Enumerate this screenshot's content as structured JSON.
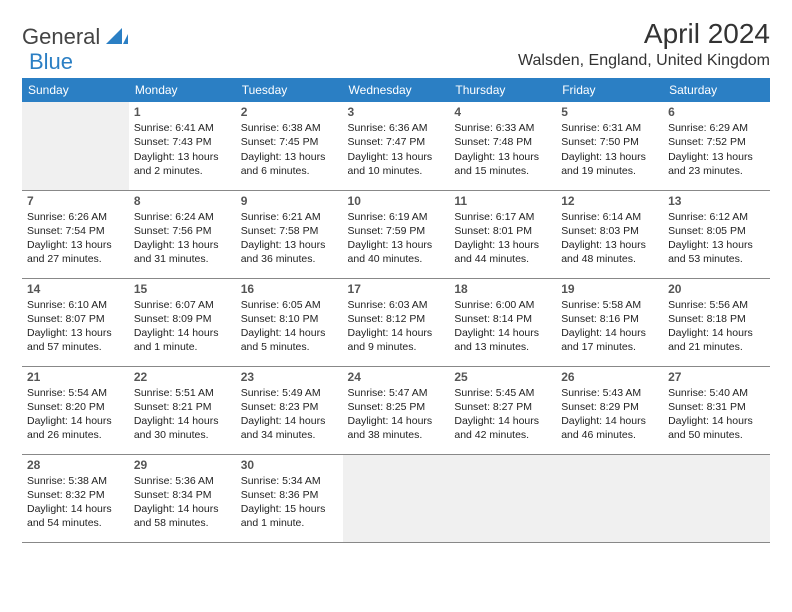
{
  "brand": {
    "part1": "General",
    "part2": "Blue"
  },
  "title": "April 2024",
  "location": "Walsden, England, United Kingdom",
  "colors": {
    "header_bg": "#2b7fc4",
    "header_text": "#ffffff",
    "brand_blue": "#2b7fc4",
    "text": "#222222",
    "empty_bg": "#f0f0f0",
    "border": "#888888"
  },
  "day_headers": [
    "Sunday",
    "Monday",
    "Tuesday",
    "Wednesday",
    "Thursday",
    "Friday",
    "Saturday"
  ],
  "weeks": [
    [
      null,
      {
        "n": "1",
        "sr": "Sunrise: 6:41 AM",
        "ss": "Sunset: 7:43 PM",
        "dl": "Daylight: 13 hours and 2 minutes."
      },
      {
        "n": "2",
        "sr": "Sunrise: 6:38 AM",
        "ss": "Sunset: 7:45 PM",
        "dl": "Daylight: 13 hours and 6 minutes."
      },
      {
        "n": "3",
        "sr": "Sunrise: 6:36 AM",
        "ss": "Sunset: 7:47 PM",
        "dl": "Daylight: 13 hours and 10 minutes."
      },
      {
        "n": "4",
        "sr": "Sunrise: 6:33 AM",
        "ss": "Sunset: 7:48 PM",
        "dl": "Daylight: 13 hours and 15 minutes."
      },
      {
        "n": "5",
        "sr": "Sunrise: 6:31 AM",
        "ss": "Sunset: 7:50 PM",
        "dl": "Daylight: 13 hours and 19 minutes."
      },
      {
        "n": "6",
        "sr": "Sunrise: 6:29 AM",
        "ss": "Sunset: 7:52 PM",
        "dl": "Daylight: 13 hours and 23 minutes."
      }
    ],
    [
      {
        "n": "7",
        "sr": "Sunrise: 6:26 AM",
        "ss": "Sunset: 7:54 PM",
        "dl": "Daylight: 13 hours and 27 minutes."
      },
      {
        "n": "8",
        "sr": "Sunrise: 6:24 AM",
        "ss": "Sunset: 7:56 PM",
        "dl": "Daylight: 13 hours and 31 minutes."
      },
      {
        "n": "9",
        "sr": "Sunrise: 6:21 AM",
        "ss": "Sunset: 7:58 PM",
        "dl": "Daylight: 13 hours and 36 minutes."
      },
      {
        "n": "10",
        "sr": "Sunrise: 6:19 AM",
        "ss": "Sunset: 7:59 PM",
        "dl": "Daylight: 13 hours and 40 minutes."
      },
      {
        "n": "11",
        "sr": "Sunrise: 6:17 AM",
        "ss": "Sunset: 8:01 PM",
        "dl": "Daylight: 13 hours and 44 minutes."
      },
      {
        "n": "12",
        "sr": "Sunrise: 6:14 AM",
        "ss": "Sunset: 8:03 PM",
        "dl": "Daylight: 13 hours and 48 minutes."
      },
      {
        "n": "13",
        "sr": "Sunrise: 6:12 AM",
        "ss": "Sunset: 8:05 PM",
        "dl": "Daylight: 13 hours and 53 minutes."
      }
    ],
    [
      {
        "n": "14",
        "sr": "Sunrise: 6:10 AM",
        "ss": "Sunset: 8:07 PM",
        "dl": "Daylight: 13 hours and 57 minutes."
      },
      {
        "n": "15",
        "sr": "Sunrise: 6:07 AM",
        "ss": "Sunset: 8:09 PM",
        "dl": "Daylight: 14 hours and 1 minute."
      },
      {
        "n": "16",
        "sr": "Sunrise: 6:05 AM",
        "ss": "Sunset: 8:10 PM",
        "dl": "Daylight: 14 hours and 5 minutes."
      },
      {
        "n": "17",
        "sr": "Sunrise: 6:03 AM",
        "ss": "Sunset: 8:12 PM",
        "dl": "Daylight: 14 hours and 9 minutes."
      },
      {
        "n": "18",
        "sr": "Sunrise: 6:00 AM",
        "ss": "Sunset: 8:14 PM",
        "dl": "Daylight: 14 hours and 13 minutes."
      },
      {
        "n": "19",
        "sr": "Sunrise: 5:58 AM",
        "ss": "Sunset: 8:16 PM",
        "dl": "Daylight: 14 hours and 17 minutes."
      },
      {
        "n": "20",
        "sr": "Sunrise: 5:56 AM",
        "ss": "Sunset: 8:18 PM",
        "dl": "Daylight: 14 hours and 21 minutes."
      }
    ],
    [
      {
        "n": "21",
        "sr": "Sunrise: 5:54 AM",
        "ss": "Sunset: 8:20 PM",
        "dl": "Daylight: 14 hours and 26 minutes."
      },
      {
        "n": "22",
        "sr": "Sunrise: 5:51 AM",
        "ss": "Sunset: 8:21 PM",
        "dl": "Daylight: 14 hours and 30 minutes."
      },
      {
        "n": "23",
        "sr": "Sunrise: 5:49 AM",
        "ss": "Sunset: 8:23 PM",
        "dl": "Daylight: 14 hours and 34 minutes."
      },
      {
        "n": "24",
        "sr": "Sunrise: 5:47 AM",
        "ss": "Sunset: 8:25 PM",
        "dl": "Daylight: 14 hours and 38 minutes."
      },
      {
        "n": "25",
        "sr": "Sunrise: 5:45 AM",
        "ss": "Sunset: 8:27 PM",
        "dl": "Daylight: 14 hours and 42 minutes."
      },
      {
        "n": "26",
        "sr": "Sunrise: 5:43 AM",
        "ss": "Sunset: 8:29 PM",
        "dl": "Daylight: 14 hours and 46 minutes."
      },
      {
        "n": "27",
        "sr": "Sunrise: 5:40 AM",
        "ss": "Sunset: 8:31 PM",
        "dl": "Daylight: 14 hours and 50 minutes."
      }
    ],
    [
      {
        "n": "28",
        "sr": "Sunrise: 5:38 AM",
        "ss": "Sunset: 8:32 PM",
        "dl": "Daylight: 14 hours and 54 minutes."
      },
      {
        "n": "29",
        "sr": "Sunrise: 5:36 AM",
        "ss": "Sunset: 8:34 PM",
        "dl": "Daylight: 14 hours and 58 minutes."
      },
      {
        "n": "30",
        "sr": "Sunrise: 5:34 AM",
        "ss": "Sunset: 8:36 PM",
        "dl": "Daylight: 15 hours and 1 minute."
      },
      null,
      null,
      null,
      null
    ]
  ]
}
